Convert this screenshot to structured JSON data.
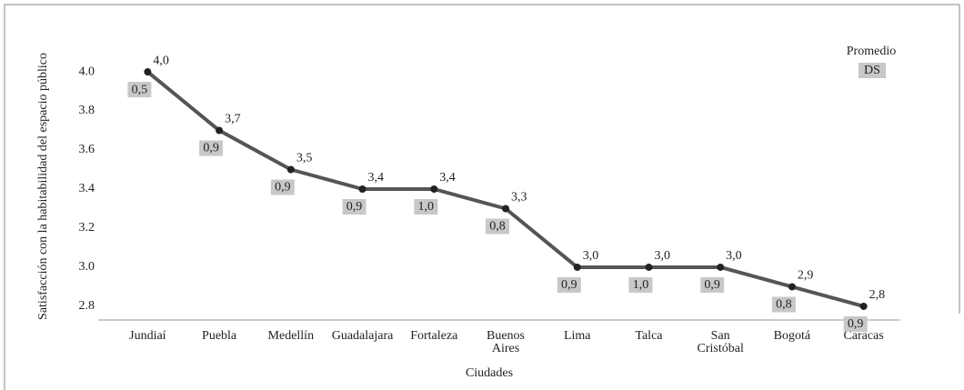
{
  "chart_data": {
    "type": "line",
    "x_label": "Ciudades",
    "y_label": "Satisfacción con la habitabilidad del espacio público",
    "categories": [
      "Jundiaí",
      "Puebla",
      "Medellín",
      "Guadalajara",
      "Fortaleza",
      "Buenos Aires",
      "Lima",
      "Talca",
      "San Cristóbal",
      "Bogotá",
      "Caracas"
    ],
    "series": [
      {
        "name": "Promedio",
        "color": "#555555",
        "values": [
          4.0,
          3.7,
          3.5,
          3.4,
          3.4,
          3.3,
          3.0,
          3.0,
          3.0,
          2.9,
          2.8
        ],
        "value_labels": [
          "4,0",
          "3,7",
          "3,5",
          "3,4",
          "3,4",
          "3,3",
          "3,0",
          "3,0",
          "3,0",
          "2,9",
          "2,8"
        ]
      },
      {
        "name": "DS",
        "color": "#c8c8c8",
        "values": [
          0.5,
          0.9,
          0.9,
          0.9,
          1.0,
          0.8,
          0.9,
          1.0,
          0.9,
          0.8,
          0.9
        ],
        "value_labels": [
          "0,5",
          "0,9",
          "0,9",
          "0,9",
          "1,0",
          "0,8",
          "0,9",
          "1,0",
          "0,9",
          "0,8",
          "0,9"
        ]
      }
    ],
    "ylim": [
      2.73,
      4.07
    ],
    "yticks": [
      {
        "value": 2.8,
        "label": "2.8"
      },
      {
        "value": 3.0,
        "label": "3.0"
      },
      {
        "value": 3.2,
        "label": "3.2"
      },
      {
        "value": 3.4,
        "label": "3.4"
      },
      {
        "value": 3.6,
        "label": "3.6"
      },
      {
        "value": 3.8,
        "label": "3.8"
      },
      {
        "value": 4.0,
        "label": "4.0"
      }
    ],
    "legend": "top-right"
  }
}
